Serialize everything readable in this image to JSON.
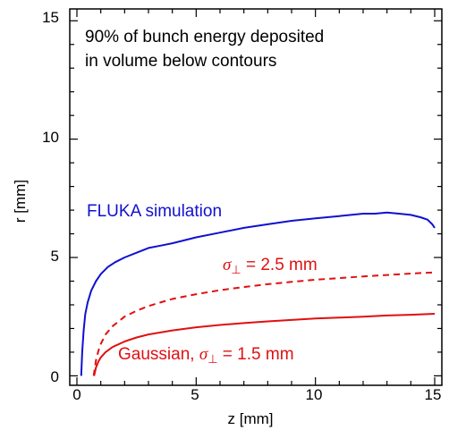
{
  "chart_data": {
    "type": "line",
    "xlabel": "z [mm]",
    "ylabel": "r [mm]",
    "xlim": [
      -0.3,
      15.3
    ],
    "ylim": [
      -0.4,
      15.5
    ],
    "xticks": [
      0,
      5,
      10,
      15
    ],
    "yticks": [
      0,
      5,
      10,
      15
    ],
    "xtick_labels": [
      "0",
      "5",
      "10",
      "15"
    ],
    "ytick_labels": [
      "0",
      "5",
      "10",
      "15"
    ],
    "grid": false,
    "annotations": {
      "note_line1": "90% of bunch energy deposited",
      "note_line2": "in volume below contours",
      "fluka_label": "FLUKA simulation",
      "wide_prefix": "σ",
      "wide_sub": "⊥",
      "wide_suffix": " = 2.5 mm",
      "narrow_prefix": "Gaussian, ",
      "narrow_sym": "σ",
      "narrow_sub": "⊥",
      "narrow_suffix": " = 1.5 mm"
    },
    "colors": {
      "fluka": "#1010d0",
      "gaussian": "#e01010"
    },
    "series": [
      {
        "style": "solid",
        "color": "#1010d0",
        "x": [
          0.18,
          0.22,
          0.28,
          0.35,
          0.45,
          0.6,
          0.8,
          1.0,
          1.3,
          1.6,
          2.0,
          2.5,
          3.0,
          3.5,
          4.0,
          5.0,
          6.0,
          7.0,
          8.0,
          9.0,
          10.0,
          11.0,
          12.0,
          12.5,
          13.0,
          13.5,
          14.0,
          14.4,
          14.7,
          14.9,
          15.0
        ],
        "y": [
          0.0,
          1.0,
          1.9,
          2.6,
          3.1,
          3.6,
          4.0,
          4.3,
          4.6,
          4.8,
          5.0,
          5.2,
          5.4,
          5.5,
          5.6,
          5.85,
          6.05,
          6.25,
          6.4,
          6.55,
          6.65,
          6.75,
          6.85,
          6.85,
          6.9,
          6.85,
          6.8,
          6.7,
          6.6,
          6.4,
          6.25
        ]
      },
      {
        "style": "dashed",
        "color": "#e01010",
        "x": [
          0.7,
          0.8,
          0.9,
          1.0,
          1.2,
          1.5,
          2.0,
          2.5,
          3.0,
          4.0,
          5.0,
          6.0,
          7.0,
          8.0,
          9.0,
          10.0,
          11.0,
          12.0,
          13.0,
          14.0,
          15.0
        ],
        "y": [
          0.0,
          0.65,
          1.05,
          1.35,
          1.75,
          2.1,
          2.5,
          2.75,
          2.95,
          3.25,
          3.45,
          3.62,
          3.75,
          3.87,
          3.97,
          4.06,
          4.13,
          4.2,
          4.26,
          4.32,
          4.37
        ]
      },
      {
        "style": "solid",
        "color": "#e01010",
        "x": [
          0.72,
          0.8,
          0.9,
          1.0,
          1.2,
          1.5,
          2.0,
          2.5,
          3.0,
          4.0,
          5.0,
          6.0,
          7.0,
          8.0,
          9.0,
          10.0,
          11.0,
          12.0,
          13.0,
          14.0,
          15.0
        ],
        "y": [
          0.0,
          0.35,
          0.6,
          0.78,
          1.0,
          1.22,
          1.45,
          1.62,
          1.75,
          1.92,
          2.05,
          2.15,
          2.23,
          2.3,
          2.36,
          2.42,
          2.46,
          2.5,
          2.55,
          2.58,
          2.62
        ]
      }
    ]
  }
}
